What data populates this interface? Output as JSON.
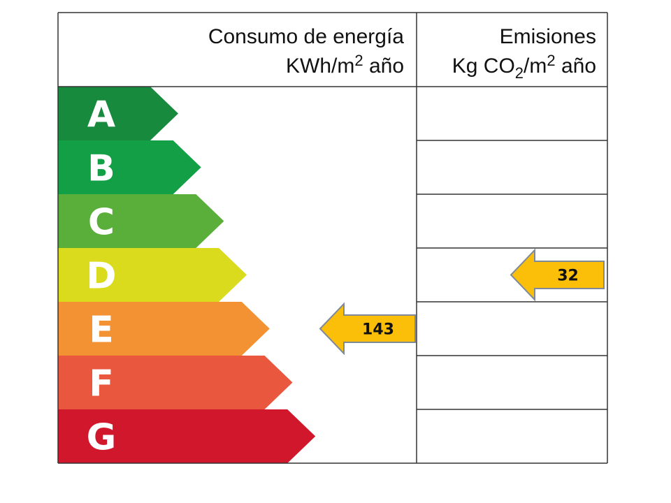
{
  "header": {
    "consumption": {
      "title": "Consumo de energía",
      "unit": [
        "KWh/m",
        "2",
        " año"
      ]
    },
    "emissions": {
      "title": "Emisiones",
      "unit": [
        "Kg CO",
        "2",
        "/m",
        "2",
        " año"
      ]
    }
  },
  "ratings": [
    {
      "letter": "A",
      "color": "#178a3e"
    },
    {
      "letter": "B",
      "color": "#139f45"
    },
    {
      "letter": "C",
      "color": "#5aae3a"
    },
    {
      "letter": "D",
      "color": "#d9db1c"
    },
    {
      "letter": "E",
      "color": "#f39232"
    },
    {
      "letter": "F",
      "color": "#e9573e"
    },
    {
      "letter": "G",
      "color": "#d1172c"
    }
  ],
  "consumption": {
    "value": 143,
    "rating": "E"
  },
  "emissions": {
    "value": 32,
    "rating": "D"
  },
  "indicator_color": "#fbbf0a"
}
